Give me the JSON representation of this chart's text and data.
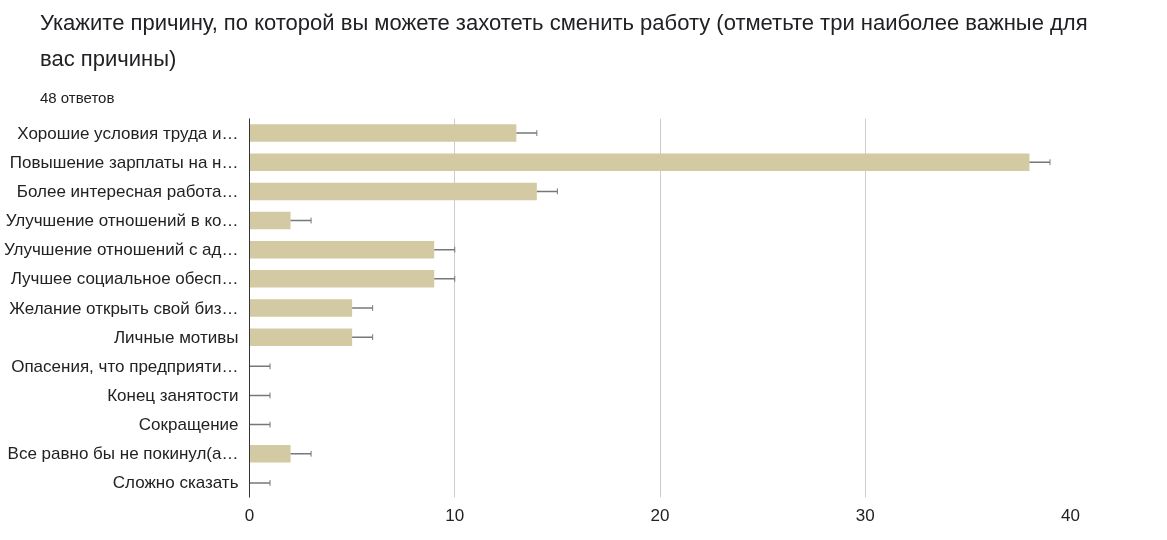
{
  "chart_data": {
    "type": "bar",
    "orientation": "horizontal",
    "title": "Укажите причину, по которой вы можете захотеть сменить работу (отметьте три наиболее важные для вас причины)",
    "subtitle": "48 ответов",
    "categories": [
      "Хорошие условия труда и…",
      "Повышение зарплаты на н…",
      "Более интересная работа…",
      "Улучшение отношений в ко…",
      "Улучшение отношений с ад…",
      "Лучшее социальное обесп…",
      "Желание открыть свой биз…",
      "Личные мотивы",
      "Опасения, что предприяти…",
      "Конец занятости",
      "Сокращение",
      "Все равно бы не покинул(а…",
      "Сложно сказать"
    ],
    "values": [
      13,
      38,
      14,
      2,
      9,
      9,
      5,
      5,
      0,
      0,
      0,
      2,
      0
    ],
    "errors": [
      [
        13,
        14
      ],
      [
        38,
        39
      ],
      [
        14,
        15
      ],
      [
        2,
        3
      ],
      [
        9,
        10
      ],
      [
        9,
        10
      ],
      [
        5,
        6
      ],
      [
        5,
        6
      ],
      [
        0,
        1
      ],
      [
        0,
        1
      ],
      [
        0,
        1
      ],
      [
        2,
        3
      ],
      [
        0,
        1
      ]
    ],
    "color": "#d3c9a2",
    "xlim": [
      0,
      40
    ],
    "xticks": [
      0,
      10,
      20,
      30,
      40
    ],
    "grid": "x"
  }
}
